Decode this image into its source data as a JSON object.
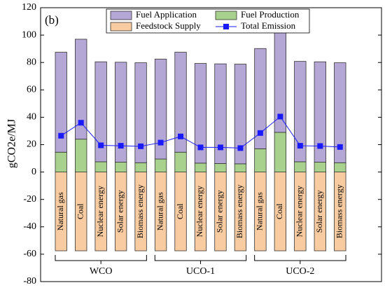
{
  "chart_data": {
    "type": "bar",
    "stacked": true,
    "panel_label": "(b)",
    "y_label": "gCO2e/MJ",
    "categories": [
      "Natural gas",
      "Coal",
      "Nuclear energy",
      "Solar energy",
      "Biomass energy",
      "Natural gas",
      "Coal",
      "Nuclear energy",
      "Solar energy",
      "Biomass energy",
      "Natural gas",
      "Coal",
      "Nuclear energy",
      "Solar energy",
      "Biomass energy"
    ],
    "groups": [
      "WCO",
      "UCO-1",
      "UCO-2"
    ],
    "series": [
      {
        "name": "Fuel Application",
        "type": "bar",
        "color": "#b4a7d6",
        "values": [
          73,
          73,
          73,
          73,
          73,
          73,
          73,
          72.8,
          72.8,
          72.8,
          73.2,
          73.5,
          73.3,
          73.3,
          73
        ]
      },
      {
        "name": "Fuel Production",
        "type": "bar",
        "color": "#a9d18e",
        "values": [
          14.5,
          24,
          7.5,
          7.2,
          6.8,
          9.5,
          14.5,
          6.5,
          6.2,
          6,
          17,
          29,
          7.5,
          7.2,
          6.8
        ]
      },
      {
        "name": "Feedstock Supply",
        "type": "bar",
        "color": "#f8cba0",
        "values": [
          -57.5,
          -57.5,
          -57.5,
          -57.5,
          -57.5,
          -57.5,
          -57.5,
          -57.5,
          -57.5,
          -57.5,
          -57.5,
          -57.5,
          -57.5,
          -57.5,
          -57.5
        ]
      },
      {
        "name": "Total Emission",
        "type": "line",
        "color": "#1a1aff",
        "values": [
          26.5,
          36,
          19.5,
          19.2,
          18.8,
          21.5,
          26,
          18,
          18,
          17.5,
          28.5,
          40.5,
          19.2,
          19,
          18.3
        ]
      }
    ],
    "ylim": [
      -80,
      120
    ],
    "yticks": [
      -80,
      -60,
      -40,
      -20,
      0,
      20,
      40,
      60,
      80,
      100,
      120
    ]
  }
}
